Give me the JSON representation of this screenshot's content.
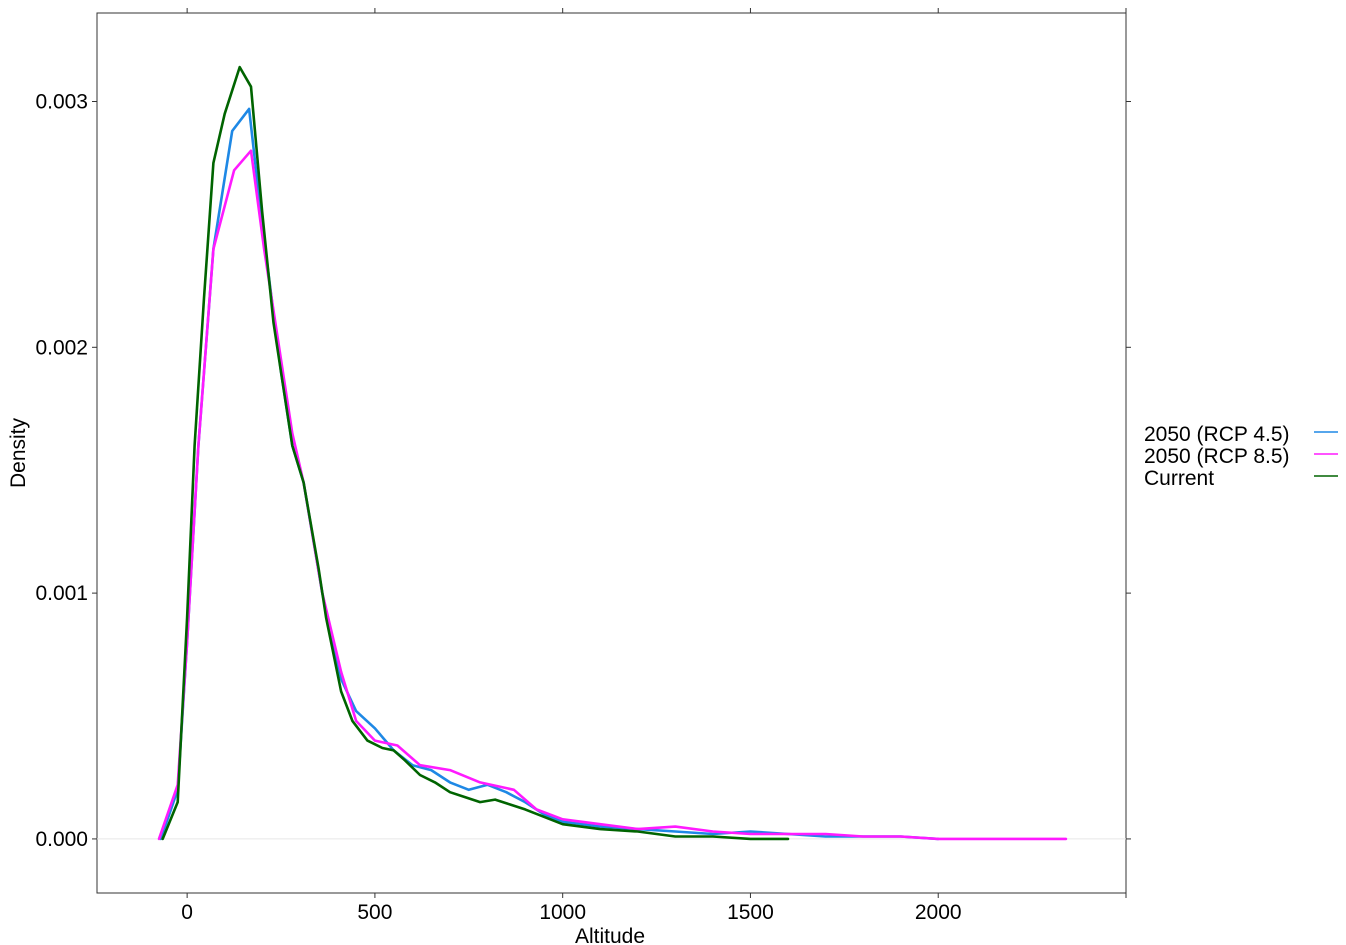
{
  "chart_data": {
    "type": "line",
    "xlabel": "Altitude",
    "ylabel": "Density",
    "xlim": [
      -240,
      2500
    ],
    "ylim": [
      -0.00022,
      0.00336
    ],
    "x_ticks": [
      0,
      500,
      1000,
      1500,
      2000
    ],
    "x_tick_labels": [
      "0",
      "500",
      "1000",
      "1500",
      "2000"
    ],
    "y_ticks": [
      0,
      0.001,
      0.002,
      0.003
    ],
    "y_tick_labels": [
      "0.000",
      "0.001",
      "0.002",
      "0.003"
    ],
    "reference_line_y": 0,
    "grid": false,
    "legend_position": "right",
    "series": [
      {
        "name": "2050 (RCP 4.5)",
        "color": "#1e88e5",
        "x": [
          -70,
          -25,
          0,
          30,
          70,
          120,
          165,
          200,
          250,
          280,
          310,
          360,
          410,
          450,
          500,
          550,
          600,
          650,
          700,
          750,
          800,
          850,
          900,
          950,
          1000,
          1100,
          1200,
          1300,
          1400,
          1500,
          1600,
          1700,
          1800,
          1900,
          2000
        ],
        "y": [
          0.0,
          0.0002,
          0.0008,
          0.0016,
          0.0024,
          0.00288,
          0.00297,
          0.0025,
          0.0019,
          0.0016,
          0.00145,
          0.001,
          0.00065,
          0.00052,
          0.00045,
          0.00036,
          0.0003,
          0.00028,
          0.00023,
          0.0002,
          0.00022,
          0.00019,
          0.00015,
          0.0001,
          7e-05,
          5e-05,
          4e-05,
          3e-05,
          2e-05,
          3e-05,
          2e-05,
          1e-05,
          1e-05,
          1e-05,
          0.0
        ]
      },
      {
        "name": "2050 (RCP 8.5)",
        "color": "#ff1aff",
        "x": [
          -75,
          -25,
          0,
          30,
          70,
          125,
          170,
          205,
          250,
          280,
          310,
          360,
          410,
          450,
          500,
          560,
          620,
          700,
          780,
          870,
          930,
          1000,
          1100,
          1200,
          1300,
          1400,
          1500,
          1600,
          1700,
          1800,
          1900,
          2000,
          2100,
          2200,
          2340
        ],
        "y": [
          0.0,
          0.00022,
          0.0008,
          0.0016,
          0.0024,
          0.00272,
          0.0028,
          0.0024,
          0.00195,
          0.00165,
          0.00145,
          0.001,
          0.00068,
          0.00048,
          0.0004,
          0.00038,
          0.0003,
          0.00028,
          0.00023,
          0.0002,
          0.00012,
          8e-05,
          6e-05,
          4e-05,
          5e-05,
          3e-05,
          2e-05,
          2e-05,
          2e-05,
          1e-05,
          1e-05,
          0.0,
          0.0,
          0.0,
          0.0
        ]
      },
      {
        "name": "Current",
        "color": "#006400",
        "x": [
          -65,
          -25,
          0,
          20,
          45,
          70,
          100,
          140,
          170,
          200,
          230,
          250,
          280,
          310,
          350,
          370,
          410,
          440,
          480,
          520,
          550,
          580,
          620,
          660,
          700,
          740,
          780,
          820,
          860,
          900,
          950,
          1000,
          1100,
          1200,
          1300,
          1400,
          1500,
          1600
        ],
        "y": [
          0.0,
          0.00015,
          0.0009,
          0.0016,
          0.0022,
          0.00275,
          0.00295,
          0.00314,
          0.00306,
          0.00255,
          0.0021,
          0.0019,
          0.0016,
          0.00145,
          0.0011,
          0.0009,
          0.0006,
          0.00048,
          0.0004,
          0.00037,
          0.00036,
          0.00032,
          0.00026,
          0.00023,
          0.00019,
          0.00017,
          0.00015,
          0.00016,
          0.00014,
          0.00012,
          9e-05,
          6e-05,
          4e-05,
          3e-05,
          1e-05,
          1e-05,
          0.0,
          0.0
        ]
      }
    ]
  }
}
